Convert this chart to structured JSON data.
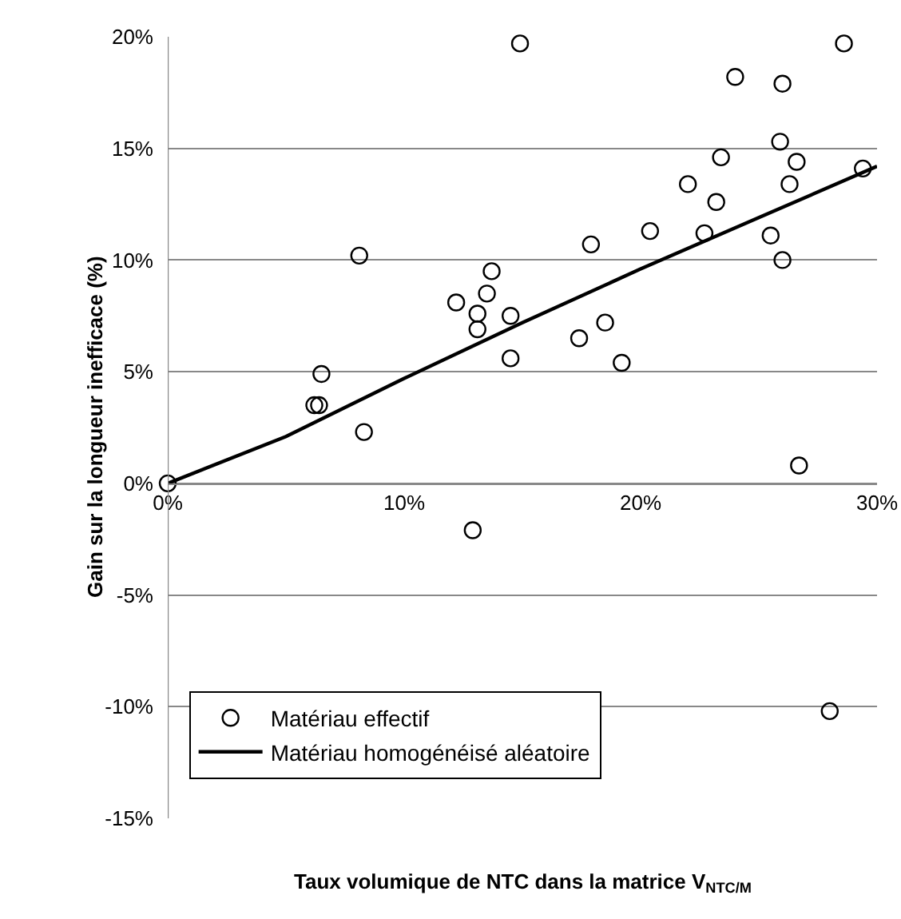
{
  "chart_data": {
    "type": "scatter",
    "xlabel": "Taux volumique de NTC dans la matrice V$_{NTC/M}$",
    "ylabel": "Gain sur la longueur inefficace (%)",
    "xlim": [
      0,
      30
    ],
    "ylim": [
      -15,
      20
    ],
    "xticks": [
      {
        "value": 0,
        "label": "0%"
      },
      {
        "value": 10,
        "label": "10%"
      },
      {
        "value": 20,
        "label": "20%"
      },
      {
        "value": 30,
        "label": "30%"
      }
    ],
    "yticks": [
      {
        "value": -15,
        "label": "-15%"
      },
      {
        "value": -10,
        "label": "-10%"
      },
      {
        "value": -5,
        "label": "-5%"
      },
      {
        "value": 0,
        "label": "0%"
      },
      {
        "value": 5,
        "label": "5%"
      },
      {
        "value": 10,
        "label": "10%"
      },
      {
        "value": 15,
        "label": "15%"
      },
      {
        "value": 20,
        "label": "20%"
      }
    ],
    "grid": "y",
    "legend": "bottom left",
    "series": [
      {
        "name": "Matériau effectif",
        "marker": "circle",
        "color": "#000000",
        "x": [
          0,
          6.2,
          6.4,
          6.5,
          8.1,
          8.3,
          12.2,
          12.9,
          13.1,
          13.1,
          13.5,
          13.7,
          14.5,
          14.5,
          14.9,
          17.4,
          17.9,
          18.5,
          19.2,
          20.4,
          22.0,
          22.7,
          23.2,
          23.4,
          24.0,
          25.5,
          25.9,
          26.0,
          26.0,
          26.3,
          26.6,
          26.7,
          28.0,
          28.6,
          29.4
        ],
        "values": [
          0,
          3.5,
          3.5,
          4.9,
          10.2,
          2.3,
          8.1,
          -2.1,
          7.6,
          6.9,
          8.5,
          9.5,
          7.5,
          5.6,
          19.7,
          6.5,
          10.7,
          7.2,
          5.4,
          11.3,
          13.4,
          11.2,
          12.6,
          14.6,
          18.2,
          11.1,
          15.3,
          17.9,
          10.0,
          13.4,
          14.4,
          0.8,
          -10.2,
          19.7,
          14.1
        ]
      },
      {
        "name": "Matériau homogénéisé aléatoire",
        "type": "line",
        "marker": "none",
        "line_style": "solid",
        "color": "#000000",
        "x": [
          0,
          5,
          10,
          15,
          20,
          25,
          30
        ],
        "values": [
          0,
          2.1,
          4.7,
          7.2,
          9.6,
          11.9,
          14.2
        ]
      }
    ]
  }
}
